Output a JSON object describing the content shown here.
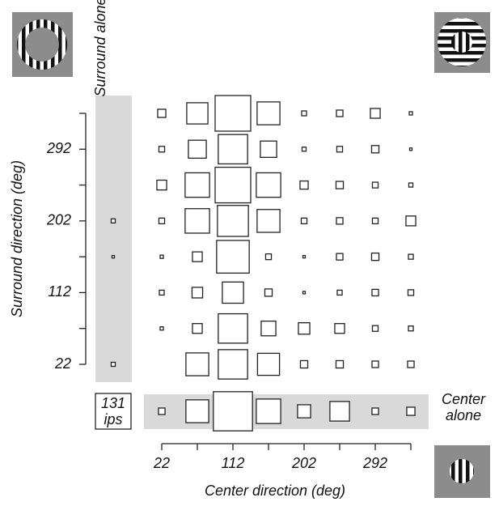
{
  "chart_data": {
    "type": "square_matrix",
    "x_label": "Center direction (deg)",
    "y_label": "Surround direction (deg)",
    "x": [
      22,
      67,
      112,
      157,
      202,
      247,
      292,
      337
    ],
    "y": [
      22,
      67,
      112,
      157,
      202,
      247,
      292,
      337
    ],
    "xlim": [
      22,
      337
    ],
    "ylim": [
      22,
      337
    ],
    "xticks": [
      22,
      112,
      202,
      292
    ],
    "yticks": [
      22,
      112,
      202,
      292
    ],
    "matrix": [
      [
        null,
        84,
        108,
        81,
        27,
        27,
        24,
        24
      ],
      [
        12,
        36,
        108,
        54,
        42,
        36,
        21,
        18
      ],
      [
        18,
        39,
        78,
        27,
        9,
        18,
        24,
        21
      ],
      [
        12,
        36,
        120,
        21,
        9,
        24,
        27,
        18
      ],
      [
        21,
        90,
        114,
        84,
        21,
        24,
        21,
        36
      ],
      [
        36,
        90,
        131,
        90,
        30,
        27,
        21,
        15
      ],
      [
        21,
        66,
        108,
        60,
        15,
        21,
        27,
        9
      ],
      [
        30,
        78,
        131,
        84,
        18,
        24,
        36,
        12
      ]
    ],
    "center_alone_label": "Center alone",
    "center_alone": [
      24,
      84,
      144,
      90,
      48,
      72,
      24,
      30
    ],
    "surround_alone_label": "Surround alone",
    "surround_alone": [
      15,
      null,
      null,
      9,
      15,
      null,
      null,
      null
    ],
    "scale": {
      "value": 131,
      "label": "131 ips"
    },
    "color": "#ffffff",
    "band_color": "#d9d9d9"
  }
}
